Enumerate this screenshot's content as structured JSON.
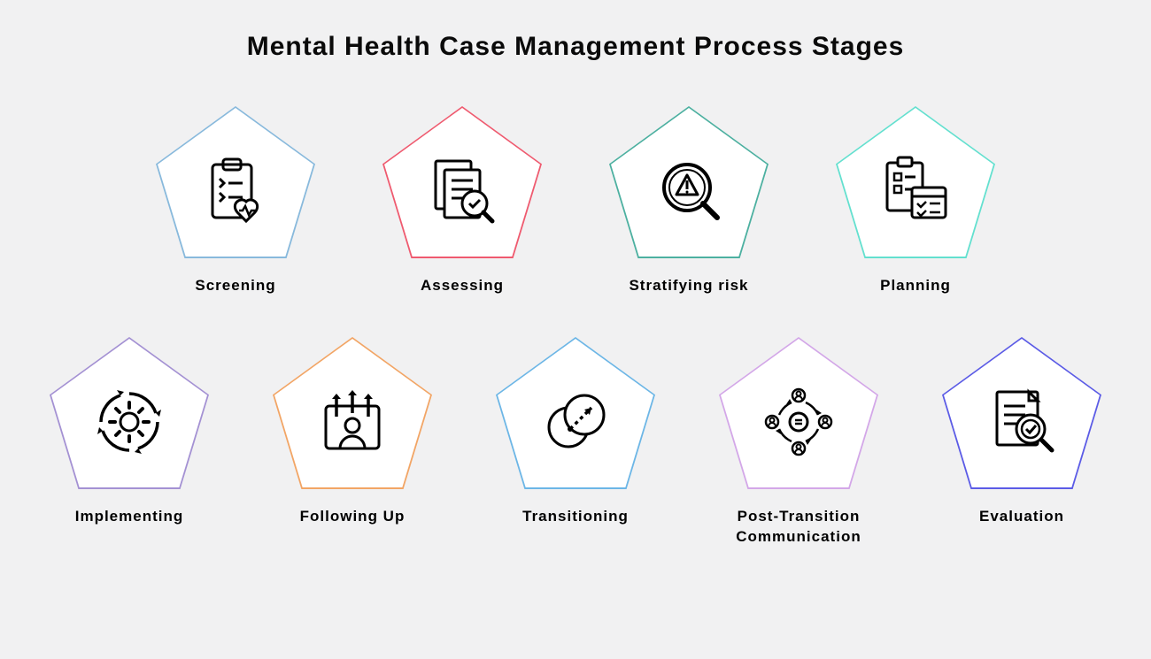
{
  "title": "Mental Health Case Management Process Stages",
  "background_color": "#f1f1f2",
  "title_fontsize": 30,
  "label_fontsize": 17,
  "icon_stroke": "#000000",
  "pentagon": {
    "outer_stroke_width": 8,
    "inner_stroke_width": 2,
    "clip_polygon": "50% 0%, 100% 38%, 82% 100%, 18% 100%, 0% 38%",
    "fill": "#ffffff"
  },
  "layout": {
    "row1_count": 4,
    "row2_count": 5,
    "row1_gap": 56,
    "row2_gap": 52
  },
  "stages": [
    {
      "label": "Screening",
      "color": "#88b9dc",
      "icon": "clipboard-heart-icon"
    },
    {
      "label": "Assessing",
      "color": "#ef5a6f",
      "icon": "document-magnify-icon"
    },
    {
      "label": "Stratifying risk",
      "color": "#4cb0a0",
      "icon": "risk-magnify-icon"
    },
    {
      "label": "Planning",
      "color": "#63e0cf",
      "icon": "plan-checklist-icon"
    },
    {
      "label": "Implementing",
      "color": "#a491d3",
      "icon": "gear-cycle-icon"
    },
    {
      "label": "Following Up",
      "color": "#f2a565",
      "icon": "person-arrows-icon"
    },
    {
      "label": "Transitioning",
      "color": "#6cb6e6",
      "icon": "circles-arrow-icon"
    },
    {
      "label": "Post-Transition Communication",
      "color": "#d3a7e8",
      "icon": "people-network-icon"
    },
    {
      "label": "Evaluation",
      "color": "#5b5be6",
      "icon": "report-check-icon"
    }
  ]
}
